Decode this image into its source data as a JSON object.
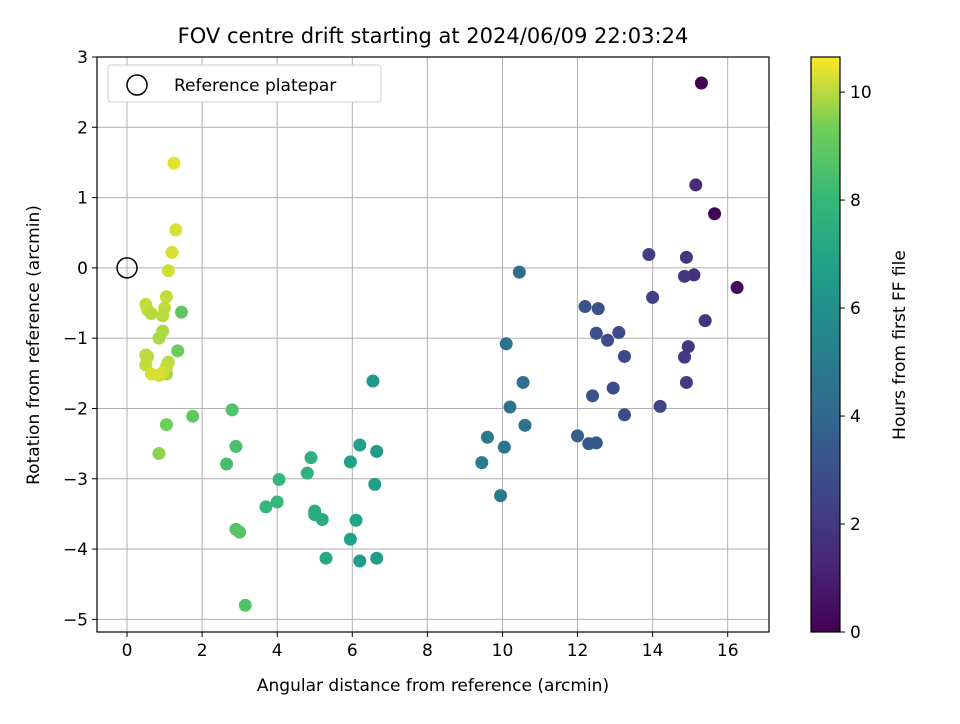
{
  "chart_data": {
    "type": "scatter",
    "title": "FOV centre drift starting at 2024/06/09 22:03:24",
    "xlabel": "Angular distance from reference (arcmin)",
    "ylabel": "Rotation from reference (arcmin)",
    "xlim": [
      -0.8,
      17.1
    ],
    "ylim": [
      -5.18,
      3.0
    ],
    "xticks": [
      0,
      2,
      4,
      6,
      8,
      10,
      12,
      14,
      16
    ],
    "yticks": [
      -5,
      -4,
      -3,
      -2,
      -1,
      0,
      1,
      2,
      3
    ],
    "grid": true,
    "legend": {
      "placement": "top-left",
      "entries": [
        "Reference platepar"
      ]
    },
    "reference_point": {
      "x": 0,
      "y": 0
    },
    "colorbar": {
      "label": "Hours from first FF file",
      "range": [
        0,
        10.65
      ],
      "ticks": [
        0,
        2,
        4,
        6,
        8,
        10
      ],
      "colormap": "viridis"
    },
    "points": [
      {
        "x": 15.3,
        "y": 2.63,
        "c": 0.05
      },
      {
        "x": 15.65,
        "y": 0.77,
        "c": 0.15
      },
      {
        "x": 16.25,
        "y": -0.28,
        "c": 0.25
      },
      {
        "x": 15.15,
        "y": 1.18,
        "c": 1.5
      },
      {
        "x": 15.1,
        "y": -0.1,
        "c": 1.6
      },
      {
        "x": 15.4,
        "y": -0.75,
        "c": 1.8
      },
      {
        "x": 14.9,
        "y": 0.15,
        "c": 1.9
      },
      {
        "x": 14.85,
        "y": -0.12,
        "c": 1.9
      },
      {
        "x": 14.95,
        "y": -1.12,
        "c": 2.0
      },
      {
        "x": 14.85,
        "y": -1.27,
        "c": 2.0
      },
      {
        "x": 14.9,
        "y": -1.63,
        "c": 2.1
      },
      {
        "x": 13.9,
        "y": 0.19,
        "c": 2.2
      },
      {
        "x": 14.0,
        "y": -0.42,
        "c": 2.4
      },
      {
        "x": 14.2,
        "y": -1.97,
        "c": 2.5
      },
      {
        "x": 13.25,
        "y": -1.26,
        "c": 2.6
      },
      {
        "x": 13.1,
        "y": -0.92,
        "c": 2.7
      },
      {
        "x": 13.25,
        "y": -2.09,
        "c": 2.7
      },
      {
        "x": 12.95,
        "y": -1.71,
        "c": 2.8
      },
      {
        "x": 12.8,
        "y": -1.03,
        "c": 2.8
      },
      {
        "x": 12.5,
        "y": -0.93,
        "c": 2.9
      },
      {
        "x": 12.55,
        "y": -0.58,
        "c": 3.0
      },
      {
        "x": 12.2,
        "y": -0.55,
        "c": 3.1
      },
      {
        "x": 12.4,
        "y": -1.82,
        "c": 3.1
      },
      {
        "x": 12.5,
        "y": -2.49,
        "c": 3.3
      },
      {
        "x": 12.3,
        "y": -2.5,
        "c": 3.4
      },
      {
        "x": 12.0,
        "y": -2.39,
        "c": 3.6
      },
      {
        "x": 10.45,
        "y": -0.06,
        "c": 4.3
      },
      {
        "x": 10.55,
        "y": -1.63,
        "c": 4.4
      },
      {
        "x": 10.6,
        "y": -2.24,
        "c": 4.4
      },
      {
        "x": 10.2,
        "y": -1.98,
        "c": 4.5
      },
      {
        "x": 10.1,
        "y": -1.08,
        "c": 4.5
      },
      {
        "x": 10.05,
        "y": -2.55,
        "c": 4.7
      },
      {
        "x": 9.95,
        "y": -3.24,
        "c": 4.8
      },
      {
        "x": 9.6,
        "y": -2.41,
        "c": 4.9
      },
      {
        "x": 9.45,
        "y": -2.77,
        "c": 5.0
      },
      {
        "x": 6.55,
        "y": -1.61,
        "c": 6.4
      },
      {
        "x": 6.65,
        "y": -2.61,
        "c": 6.5
      },
      {
        "x": 6.6,
        "y": -3.08,
        "c": 6.7
      },
      {
        "x": 6.65,
        "y": -4.13,
        "c": 6.6
      },
      {
        "x": 6.2,
        "y": -2.52,
        "c": 6.8
      },
      {
        "x": 5.95,
        "y": -2.76,
        "c": 6.9
      },
      {
        "x": 6.1,
        "y": -3.59,
        "c": 6.9
      },
      {
        "x": 5.95,
        "y": -3.86,
        "c": 6.8
      },
      {
        "x": 6.2,
        "y": -4.17,
        "c": 6.7
      },
      {
        "x": 5.3,
        "y": -4.13,
        "c": 7.2
      },
      {
        "x": 5.2,
        "y": -3.58,
        "c": 7.3
      },
      {
        "x": 5.0,
        "y": -3.51,
        "c": 7.4
      },
      {
        "x": 5.0,
        "y": -3.46,
        "c": 7.4
      },
      {
        "x": 4.9,
        "y": -2.7,
        "c": 7.6
      },
      {
        "x": 4.8,
        "y": -2.92,
        "c": 7.7
      },
      {
        "x": 4.05,
        "y": -3.01,
        "c": 8.0
      },
      {
        "x": 4.0,
        "y": -3.33,
        "c": 8.0
      },
      {
        "x": 3.7,
        "y": -3.4,
        "c": 8.0
      },
      {
        "x": 2.65,
        "y": -2.79,
        "c": 8.4
      },
      {
        "x": 2.8,
        "y": -2.02,
        "c": 8.6
      },
      {
        "x": 2.9,
        "y": -2.54,
        "c": 8.5
      },
      {
        "x": 2.9,
        "y": -3.72,
        "c": 8.7
      },
      {
        "x": 3.0,
        "y": -3.76,
        "c": 8.8
      },
      {
        "x": 3.15,
        "y": -4.8,
        "c": 8.7
      },
      {
        "x": 1.45,
        "y": -0.63,
        "c": 8.9
      },
      {
        "x": 1.75,
        "y": -2.11,
        "c": 9.0
      },
      {
        "x": 1.35,
        "y": -1.18,
        "c": 9.2
      },
      {
        "x": 1.05,
        "y": -2.23,
        "c": 9.3
      },
      {
        "x": 0.85,
        "y": -2.64,
        "c": 9.6
      },
      {
        "x": 1.05,
        "y": -1.51,
        "c": 9.8
      },
      {
        "x": 1.25,
        "y": 1.49,
        "c": 10.4
      },
      {
        "x": 1.3,
        "y": 0.54,
        "c": 10.3
      },
      {
        "x": 1.2,
        "y": 0.22,
        "c": 10.3
      },
      {
        "x": 1.1,
        "y": -0.04,
        "c": 10.2
      },
      {
        "x": 1.05,
        "y": -0.41,
        "c": 10.1
      },
      {
        "x": 1.0,
        "y": -0.57,
        "c": 10.1
      },
      {
        "x": 0.95,
        "y": -0.68,
        "c": 10.0
      },
      {
        "x": 0.5,
        "y": -0.52,
        "c": 10.1
      },
      {
        "x": 0.55,
        "y": -0.6,
        "c": 10.1
      },
      {
        "x": 0.65,
        "y": -0.65,
        "c": 10.0
      },
      {
        "x": 0.95,
        "y": -0.9,
        "c": 9.9
      },
      {
        "x": 0.85,
        "y": -1.0,
        "c": 9.9
      },
      {
        "x": 0.5,
        "y": -1.24,
        "c": 10.0
      },
      {
        "x": 0.55,
        "y": -1.26,
        "c": 10.0
      },
      {
        "x": 0.5,
        "y": -1.38,
        "c": 10.1
      },
      {
        "x": 1.1,
        "y": -1.34,
        "c": 10.0
      },
      {
        "x": 1.05,
        "y": -1.41,
        "c": 10.1
      },
      {
        "x": 0.65,
        "y": -1.51,
        "c": 10.3
      },
      {
        "x": 0.95,
        "y": -1.49,
        "c": 10.2
      },
      {
        "x": 0.85,
        "y": -1.53,
        "c": 10.3
      }
    ]
  }
}
